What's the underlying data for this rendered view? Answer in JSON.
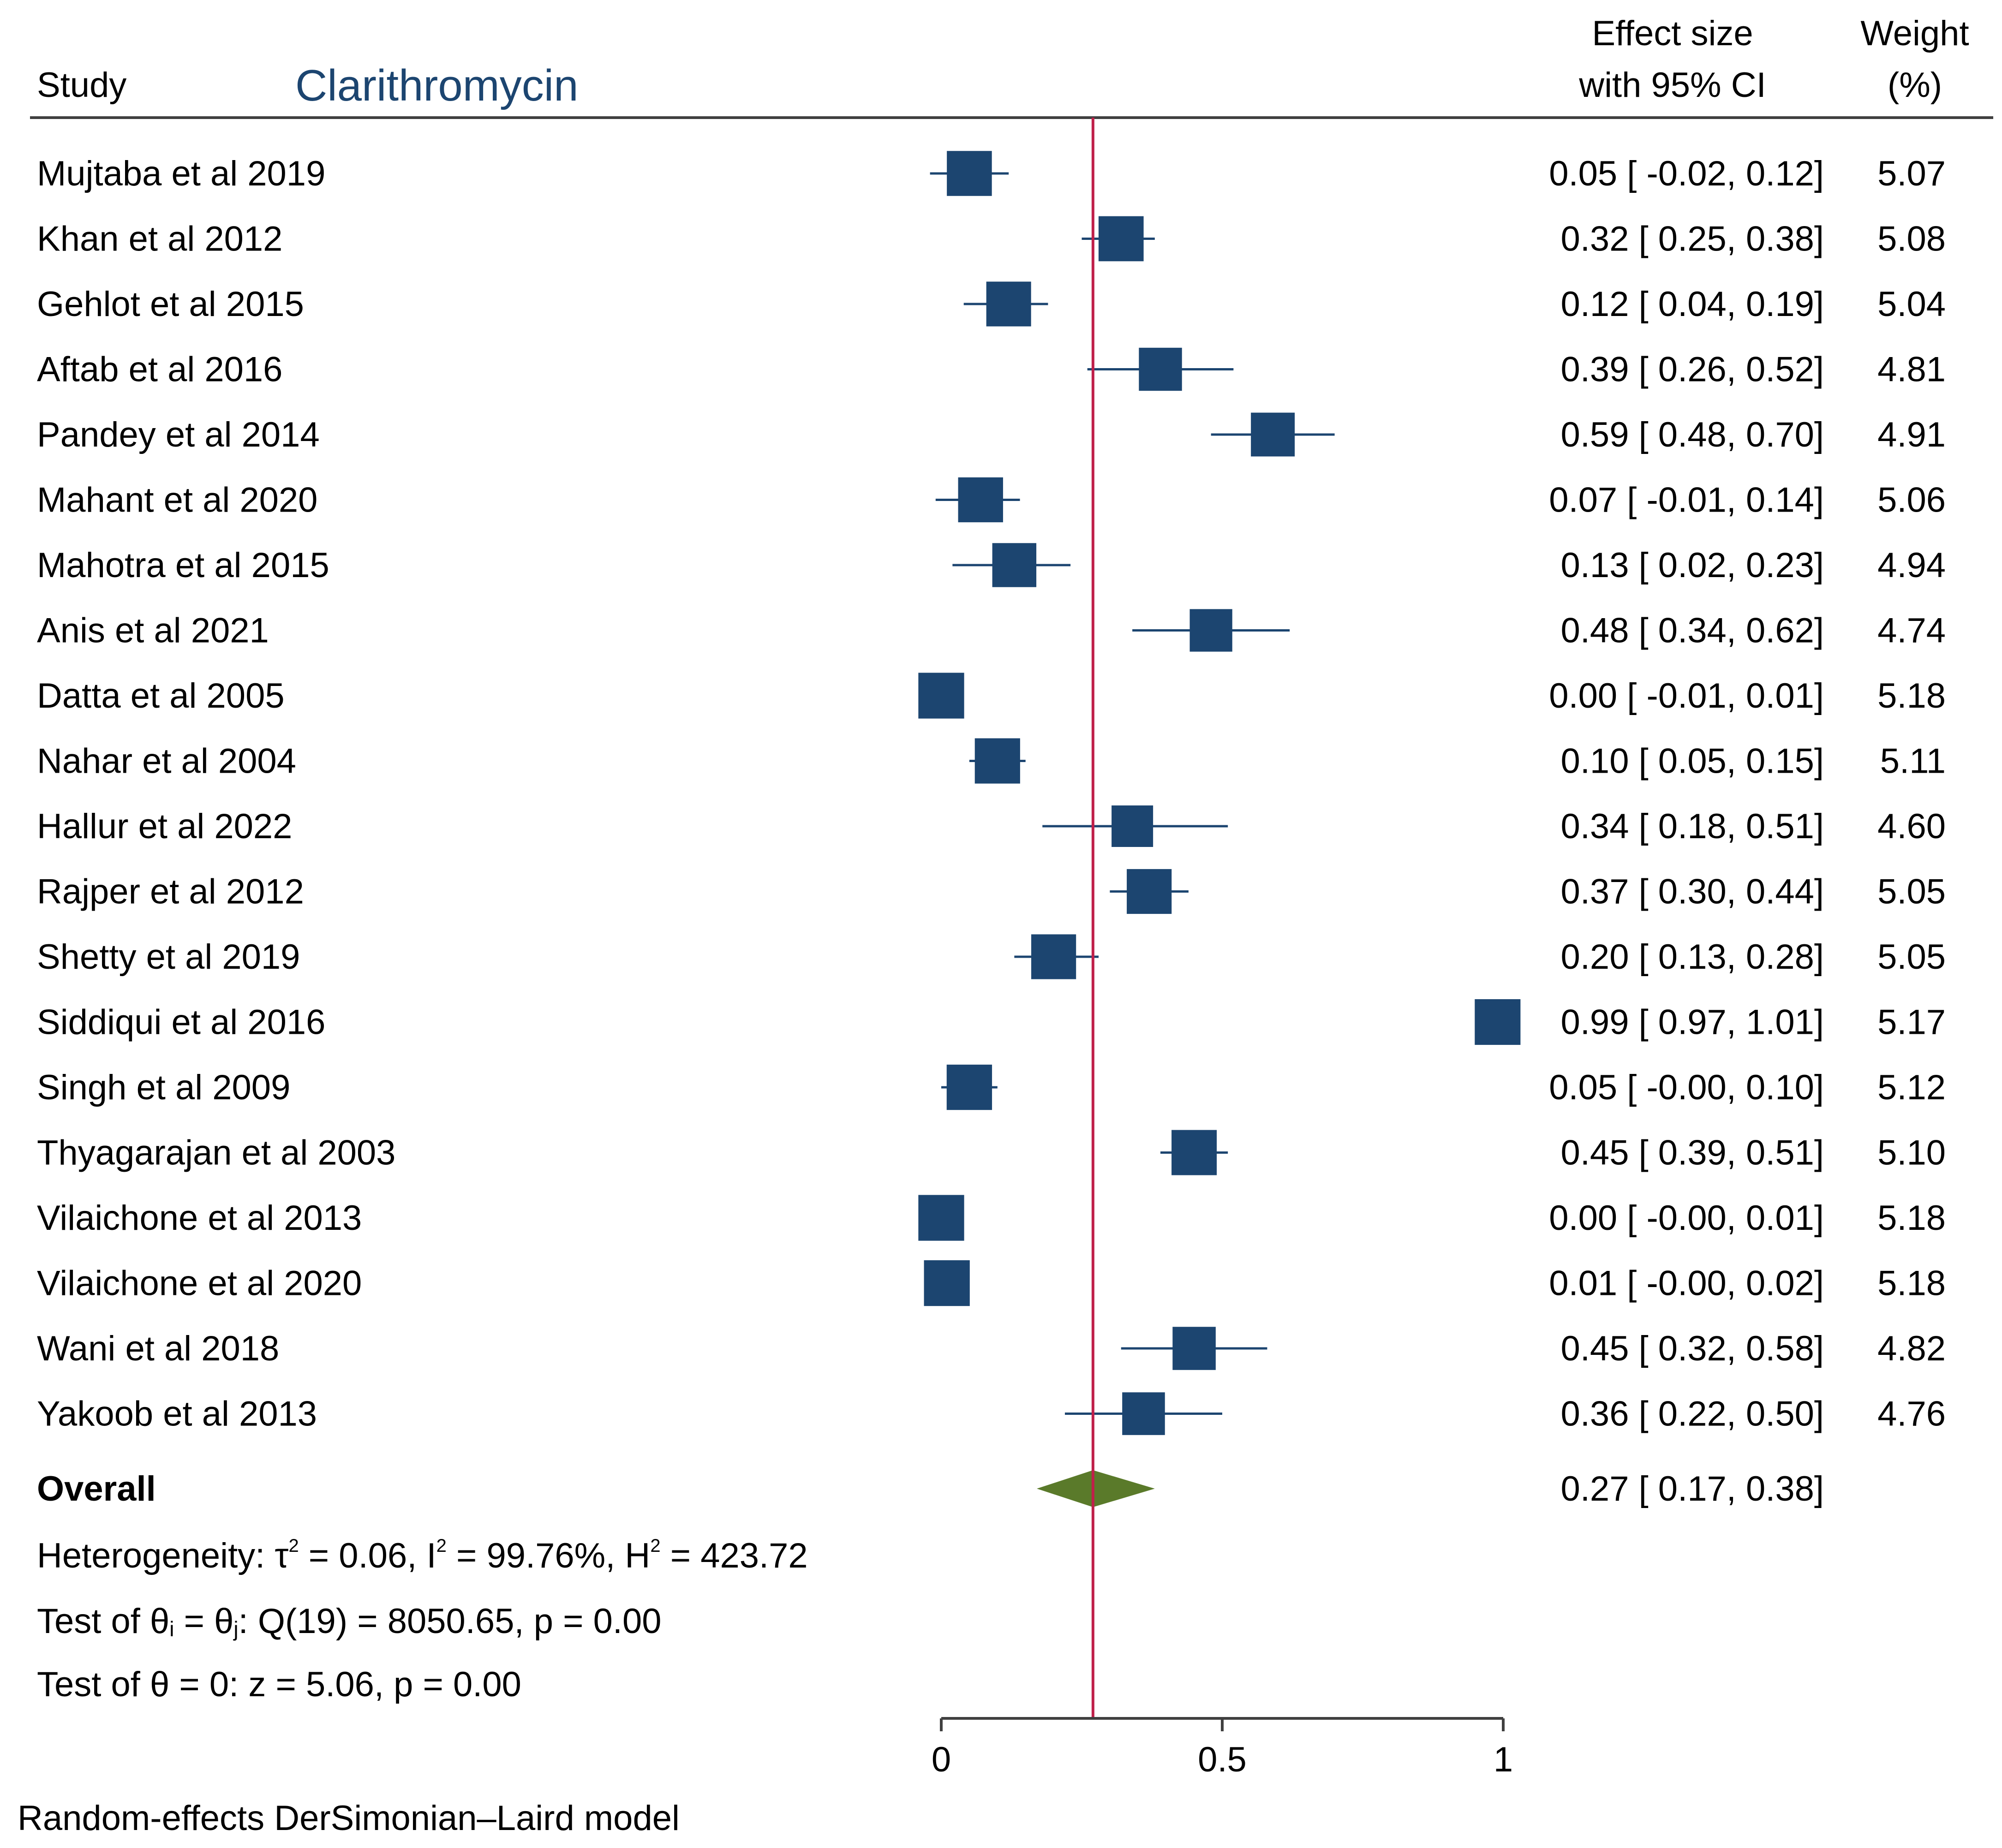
{
  "header": {
    "study_label": "Study",
    "subgroup_title": "Clarithromycin",
    "effect_label_line1": "Effect size",
    "effect_label_line2": "with 95% CI",
    "weight_label_line1": "Weight",
    "weight_label_line2": "(%)"
  },
  "chart_data": {
    "type": "forest",
    "title": "Clarithromycin",
    "xlabel": "",
    "xlim": [
      0,
      1
    ],
    "xticks": [
      {
        "value": 0,
        "label": "0"
      },
      {
        "value": 0.5,
        "label": "0.5"
      },
      {
        "value": 1,
        "label": "1"
      }
    ],
    "reference_line": 0.27,
    "studies": [
      {
        "name": "Mujtaba et al 2019",
        "es": 0.05,
        "lo": -0.02,
        "hi": 0.12,
        "ci_text": "0.05 [ -0.02,  0.12]",
        "weight": "5.07"
      },
      {
        "name": "Khan et al 2012",
        "es": 0.32,
        "lo": 0.25,
        "hi": 0.38,
        "ci_text": "0.32 [  0.25,  0.38]",
        "weight": "5.08"
      },
      {
        "name": "Gehlot et al 2015",
        "es": 0.12,
        "lo": 0.04,
        "hi": 0.19,
        "ci_text": "0.12 [  0.04,  0.19]",
        "weight": "5.04"
      },
      {
        "name": "Aftab et al 2016",
        "es": 0.39,
        "lo": 0.26,
        "hi": 0.52,
        "ci_text": "0.39 [  0.26,  0.52]",
        "weight": "4.81"
      },
      {
        "name": "Pandey et al 2014",
        "es": 0.59,
        "lo": 0.48,
        "hi": 0.7,
        "ci_text": "0.59 [  0.48,  0.70]",
        "weight": "4.91"
      },
      {
        "name": "Mahant et al 2020",
        "es": 0.07,
        "lo": -0.01,
        "hi": 0.14,
        "ci_text": "0.07 [ -0.01,  0.14]",
        "weight": "5.06"
      },
      {
        "name": "Mahotra et al 2015",
        "es": 0.13,
        "lo": 0.02,
        "hi": 0.23,
        "ci_text": "0.13 [  0.02,  0.23]",
        "weight": "4.94"
      },
      {
        "name": "Anis et al 2021",
        "es": 0.48,
        "lo": 0.34,
        "hi": 0.62,
        "ci_text": "0.48 [  0.34,  0.62]",
        "weight": "4.74"
      },
      {
        "name": "Datta et al 2005",
        "es": 0.0,
        "lo": -0.01,
        "hi": 0.01,
        "ci_text": "0.00 [ -0.01,  0.01]",
        "weight": "5.18"
      },
      {
        "name": "Nahar et al 2004",
        "es": 0.1,
        "lo": 0.05,
        "hi": 0.15,
        "ci_text": "0.10 [  0.05,  0.15]",
        "weight": "5.11"
      },
      {
        "name": "Hallur et al 2022",
        "es": 0.34,
        "lo": 0.18,
        "hi": 0.51,
        "ci_text": "0.34 [  0.18,  0.51]",
        "weight": "4.60"
      },
      {
        "name": "Rajper et al 2012",
        "es": 0.37,
        "lo": 0.3,
        "hi": 0.44,
        "ci_text": "0.37 [  0.30,  0.44]",
        "weight": "5.05"
      },
      {
        "name": "Shetty et al 2019",
        "es": 0.2,
        "lo": 0.13,
        "hi": 0.28,
        "ci_text": "0.20 [  0.13,  0.28]",
        "weight": "5.05"
      },
      {
        "name": "Siddiqui et al 2016",
        "es": 0.99,
        "lo": 0.97,
        "hi": 1.01,
        "ci_text": "0.99 [  0.97,  1.01]",
        "weight": "5.17"
      },
      {
        "name": "Singh et al 2009",
        "es": 0.05,
        "lo": -0.0,
        "hi": 0.1,
        "ci_text": "0.05 [ -0.00,  0.10]",
        "weight": "5.12"
      },
      {
        "name": "Thyagarajan et al 2003",
        "es": 0.45,
        "lo": 0.39,
        "hi": 0.51,
        "ci_text": "0.45 [  0.39,  0.51]",
        "weight": "5.10"
      },
      {
        "name": "Vilaichone et al 2013",
        "es": 0.0,
        "lo": -0.0,
        "hi": 0.01,
        "ci_text": "0.00 [ -0.00,  0.01]",
        "weight": "5.18"
      },
      {
        "name": "Vilaichone et al 2020",
        "es": 0.01,
        "lo": -0.0,
        "hi": 0.02,
        "ci_text": "0.01 [ -0.00,  0.02]",
        "weight": "5.18"
      },
      {
        "name": "Wani et al 2018",
        "es": 0.45,
        "lo": 0.32,
        "hi": 0.58,
        "ci_text": "0.45 [  0.32,  0.58]",
        "weight": "4.82"
      },
      {
        "name": "Yakoob et al 2013",
        "es": 0.36,
        "lo": 0.22,
        "hi": 0.5,
        "ci_text": "0.36 [  0.22,  0.50]",
        "weight": "4.76"
      }
    ],
    "overall": {
      "name": "Overall",
      "es": 0.27,
      "lo": 0.17,
      "hi": 0.38,
      "ci_text": "0.27 [  0.17,  0.38]"
    },
    "heterogeneity": {
      "prefix": "Heterogeneity: τ",
      "tau_text": " = 0.06, I",
      "i2_text": " = 99.76%, H",
      "h2_text": " = 423.72",
      "sup": "2"
    },
    "test_equal": {
      "a": "Test of θ",
      "i": "i",
      "b": " = θ",
      "j": "j",
      "c": ": Q(19) = 8050.65, p = 0.00"
    },
    "test_zero": "Test of θ = 0: z = 5.06, p = 0.00",
    "model_note": "Random-effects DerSimonian–Laird model",
    "colors": {
      "marker": "#1c4570",
      "ci_line": "#1c4570",
      "diamond": "#5a7a2a",
      "reference": "#c0204a",
      "axis": "#404040"
    }
  }
}
